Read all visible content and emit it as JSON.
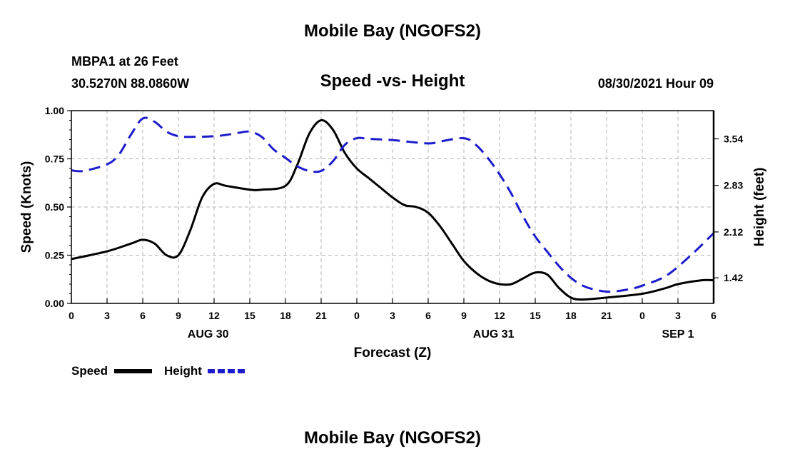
{
  "header": {
    "title": "Mobile Bay (NGOFS2)",
    "station": "MBPA1 at 26 Feet",
    "coordinates": "30.5270N  88.0860W",
    "timestamp": "08/30/2021 Hour 09"
  },
  "footer": {
    "title": "Mobile Bay (NGOFS2)"
  },
  "colors": {
    "speed": "#000000",
    "height": "#1c1ccc",
    "grid": "#b4b4b4"
  },
  "chart_data": {
    "type": "line",
    "title": "Speed -vs- Height",
    "xlabel": "Forecast (Z)",
    "ylabel": "Speed (Knots)",
    "y2label": "Height (feet)",
    "xlim": [
      0,
      54
    ],
    "ylim": [
      0,
      1.0
    ],
    "y2lim": [
      1.03,
      3.97
    ],
    "x_ticks": [
      0,
      3,
      6,
      9,
      12,
      15,
      18,
      21,
      24,
      27,
      30,
      33,
      36,
      39,
      42,
      45,
      48,
      51,
      54
    ],
    "x_tick_labels": [
      "0",
      "3",
      "6",
      "9",
      "12",
      "15",
      "18",
      "21",
      "0",
      "3",
      "6",
      "9",
      "12",
      "15",
      "18",
      "21",
      "0",
      "3",
      "6"
    ],
    "date_labels": [
      {
        "x": 11.5,
        "label": "AUG 30"
      },
      {
        "x": 35.5,
        "label": "AUG 31"
      },
      {
        "x": 51.0,
        "label": "SEP 1"
      }
    ],
    "y_ticks": [
      0,
      0.25,
      0.5,
      0.75,
      1.0
    ],
    "y_tick_labels": [
      "0.00",
      "0.25",
      "0.50",
      "0.75",
      "1.00"
    ],
    "y2_ticks": [
      1.42,
      2.12,
      2.83,
      3.54
    ],
    "y2_tick_labels": [
      "1.42",
      "2.12",
      "2.83",
      "3.54"
    ],
    "legend": [
      {
        "name": "Speed",
        "style": "solid"
      },
      {
        "name": "Height",
        "style": "dashed"
      }
    ],
    "series": [
      {
        "name": "Speed",
        "axis": "left",
        "style": "solid",
        "x": [
          0,
          3,
          5,
          6,
          7,
          8,
          9,
          10,
          11,
          12,
          13,
          15,
          16,
          18,
          19,
          20,
          21,
          22,
          23,
          24,
          25,
          26,
          27,
          28,
          29,
          30,
          31,
          32,
          33,
          34,
          35,
          36,
          37,
          38,
          39,
          40,
          41,
          42,
          43,
          45,
          48,
          50,
          51,
          53,
          54
        ],
        "y": [
          0.23,
          0.27,
          0.31,
          0.33,
          0.31,
          0.25,
          0.25,
          0.38,
          0.55,
          0.62,
          0.61,
          0.59,
          0.59,
          0.61,
          0.72,
          0.88,
          0.95,
          0.9,
          0.78,
          0.7,
          0.65,
          0.6,
          0.55,
          0.51,
          0.5,
          0.47,
          0.4,
          0.31,
          0.22,
          0.16,
          0.12,
          0.1,
          0.1,
          0.13,
          0.16,
          0.15,
          0.08,
          0.03,
          0.02,
          0.03,
          0.05,
          0.08,
          0.1,
          0.12,
          0.12
        ]
      },
      {
        "name": "Height",
        "axis": "right",
        "style": "dashed",
        "x": [
          0,
          1,
          3,
          4,
          5,
          6,
          7,
          8,
          9,
          10,
          12,
          13,
          14,
          15,
          16,
          17,
          18,
          19,
          20,
          21,
          22,
          23,
          24,
          25,
          27,
          30,
          31,
          33,
          34,
          35,
          36,
          37,
          38,
          39,
          40,
          41,
          42,
          43,
          44,
          45,
          46,
          47,
          48,
          50,
          52,
          54
        ],
        "y": [
          3.06,
          3.05,
          3.15,
          3.3,
          3.6,
          3.85,
          3.8,
          3.65,
          3.58,
          3.57,
          3.58,
          3.6,
          3.63,
          3.65,
          3.57,
          3.38,
          3.25,
          3.12,
          3.05,
          3.05,
          3.2,
          3.45,
          3.55,
          3.54,
          3.52,
          3.47,
          3.5,
          3.55,
          3.45,
          3.25,
          3.0,
          2.7,
          2.35,
          2.05,
          1.82,
          1.6,
          1.42,
          1.3,
          1.24,
          1.21,
          1.22,
          1.25,
          1.3,
          1.45,
          1.75,
          2.1
        ]
      }
    ]
  }
}
